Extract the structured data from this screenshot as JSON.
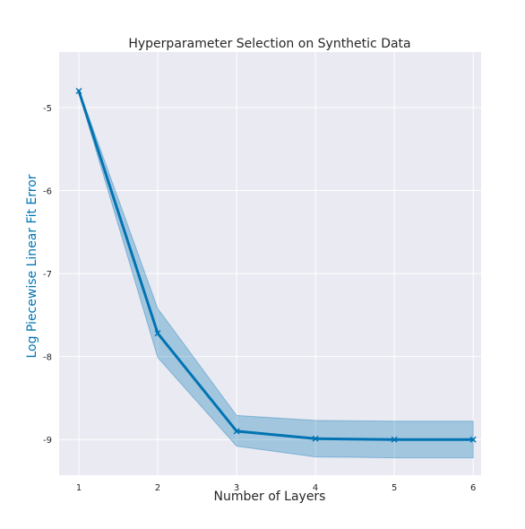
{
  "chart_data": {
    "type": "line",
    "title": "Hyperparameter Selection on Synthetic Data",
    "xlabel": "Number of Layers",
    "ylabel": "Log Piecewise Linear Fit Error",
    "x": [
      1,
      2,
      3,
      4,
      5,
      6
    ],
    "xticks": [
      "1",
      "2",
      "3",
      "4",
      "5",
      "6"
    ],
    "yticks": [
      "-5",
      "-6",
      "-7",
      "-8",
      "-9"
    ],
    "ytick_values": [
      -5,
      -6,
      -7,
      -8,
      -9
    ],
    "xlim": [
      0.75,
      6.1
    ],
    "ylim": [
      -9.43,
      -4.33
    ],
    "grid": true,
    "series": [
      {
        "values": [
          -4.8,
          -7.72,
          -8.9,
          -8.99,
          -9.0,
          -9.0
        ],
        "band_upper": [
          -4.78,
          -7.42,
          -8.71,
          -8.77,
          -8.78,
          -8.78
        ],
        "band_lower": [
          -4.82,
          -8.01,
          -9.08,
          -9.21,
          -9.22,
          -9.22
        ],
        "marker": "x",
        "color": "#0173b2",
        "band_color": "#0173b2"
      }
    ],
    "colors": {
      "plot_background": "#eaeaf2",
      "grid": "#ffffff",
      "ylabel": "#0173b2",
      "text": "#262626"
    }
  }
}
